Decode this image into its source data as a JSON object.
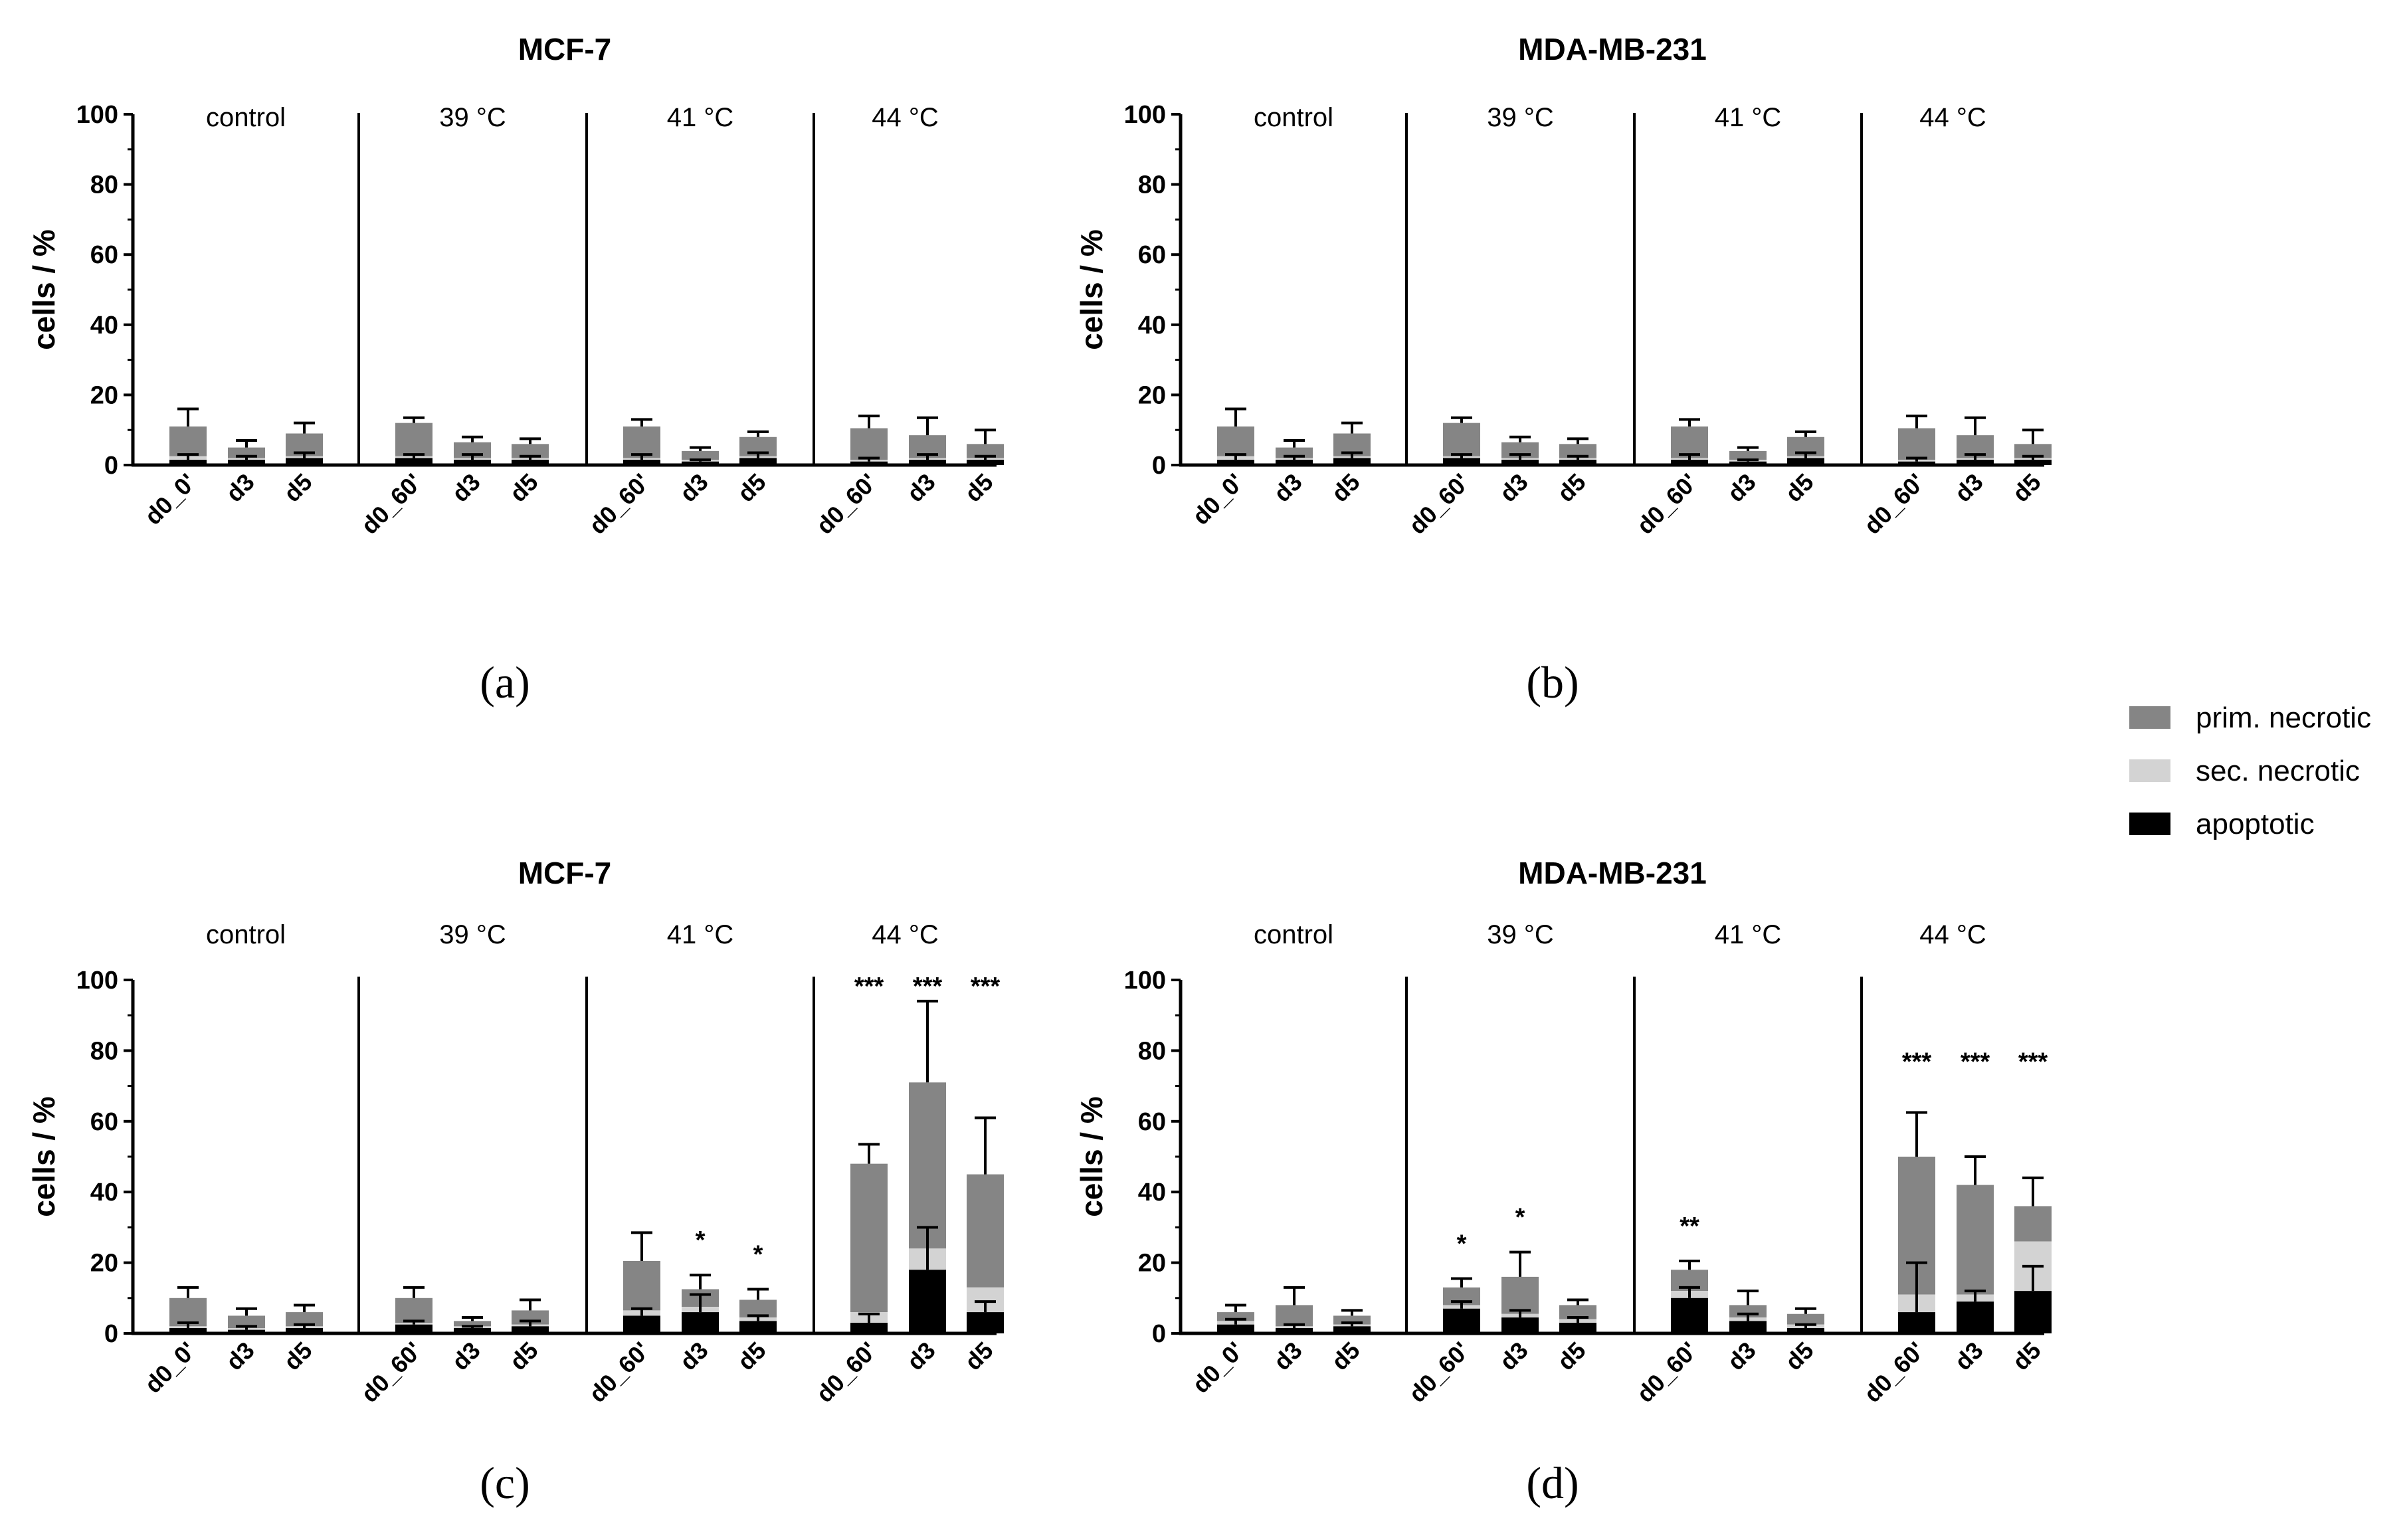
{
  "colors": {
    "prim": "#858585",
    "sec": "#d3d3d3",
    "apop": "#000000",
    "axis": "#000000"
  },
  "legend": [
    {
      "key": "prim",
      "label": "prim. necrotic"
    },
    {
      "key": "sec",
      "label": "sec. necrotic"
    },
    {
      "key": "apop",
      "label": "apoptotic"
    }
  ],
  "chart_data": [
    {
      "type": "bar",
      "panel_label": "(a)",
      "title": "MCF-7",
      "ylabel": "cells / %",
      "ylim": [
        0,
        100
      ],
      "yticks": [
        "0",
        "20",
        "40",
        "60",
        "80",
        "100"
      ],
      "groups": [
        {
          "label": "control",
          "categories": [
            "d0_0'",
            "d3",
            "d5"
          ],
          "apoptotic": [
            1.5,
            1.5,
            2
          ],
          "sec_necrotic": [
            1,
            0.5,
            0.5
          ],
          "prim_necrotic": [
            8.5,
            3,
            6.5
          ],
          "err_apoptotic": [
            1.5,
            1,
            1.5
          ],
          "err_total": [
            5,
            2,
            3
          ],
          "stars": [
            "",
            "",
            ""
          ]
        },
        {
          "label": "39 °C",
          "categories": [
            "d0_60'",
            "d3",
            "d5"
          ],
          "apoptotic": [
            2,
            1.5,
            1.5
          ],
          "sec_necrotic": [
            0.5,
            0.5,
            0.5
          ],
          "prim_necrotic": [
            9.5,
            4.5,
            4
          ],
          "err_apoptotic": [
            1,
            1.5,
            1
          ],
          "err_total": [
            1.5,
            1.5,
            1.5
          ],
          "stars": [
            "",
            "",
            ""
          ]
        },
        {
          "label": "41 °C",
          "categories": [
            "d0_60'",
            "d3",
            "d5"
          ],
          "apoptotic": [
            1.5,
            1,
            2
          ],
          "sec_necrotic": [
            0.5,
            0.5,
            0.5
          ],
          "prim_necrotic": [
            9,
            2.5,
            5.5
          ],
          "err_apoptotic": [
            1.5,
            0.5,
            1.5
          ],
          "err_total": [
            2,
            1,
            1.5
          ],
          "stars": [
            "",
            "",
            ""
          ]
        },
        {
          "label": "44 °C",
          "categories": [
            "d0_60'",
            "d3",
            "d5"
          ],
          "apoptotic": [
            1,
            1.5,
            1.5
          ],
          "sec_necrotic": [
            0.5,
            0.5,
            0.5
          ],
          "prim_necrotic": [
            9,
            6.5,
            4
          ],
          "err_apoptotic": [
            1,
            1.5,
            1
          ],
          "err_total": [
            3.5,
            5,
            4
          ],
          "stars": [
            "",
            "",
            ""
          ]
        }
      ]
    },
    {
      "type": "bar",
      "panel_label": "(b)",
      "title": "MDA-MB-231",
      "ylabel": "cells / %",
      "ylim": [
        0,
        100
      ],
      "yticks": [
        "0",
        "20",
        "40",
        "60",
        "80",
        "100"
      ],
      "groups": [
        {
          "label": "control",
          "categories": [
            "d0_0'",
            "d3",
            "d5"
          ],
          "apoptotic": [
            1.5,
            1.5,
            2
          ],
          "sec_necrotic": [
            1,
            0.5,
            0.5
          ],
          "prim_necrotic": [
            8.5,
            3,
            6.5
          ],
          "err_apoptotic": [
            1.5,
            1,
            1.5
          ],
          "err_total": [
            5,
            2,
            3
          ],
          "stars": [
            "",
            "",
            ""
          ]
        },
        {
          "label": "39 °C",
          "categories": [
            "d0_60'",
            "d3",
            "d5"
          ],
          "apoptotic": [
            2,
            1.5,
            1.5
          ],
          "sec_necrotic": [
            0.5,
            0.5,
            0.5
          ],
          "prim_necrotic": [
            9.5,
            4.5,
            4
          ],
          "err_apoptotic": [
            1,
            1.5,
            1
          ],
          "err_total": [
            1.5,
            1.5,
            1.5
          ],
          "stars": [
            "",
            "",
            ""
          ]
        },
        {
          "label": "41 °C",
          "categories": [
            "d0_60'",
            "d3",
            "d5"
          ],
          "apoptotic": [
            1.5,
            1,
            2
          ],
          "sec_necrotic": [
            0.5,
            0.5,
            0.5
          ],
          "prim_necrotic": [
            9,
            2.5,
            5.5
          ],
          "err_apoptotic": [
            1.5,
            0.5,
            1.5
          ],
          "err_total": [
            2,
            1,
            1.5
          ],
          "stars": [
            "",
            "",
            ""
          ]
        },
        {
          "label": "44 °C",
          "categories": [
            "d0_60'",
            "d3",
            "d5"
          ],
          "apoptotic": [
            1,
            1.5,
            1.5
          ],
          "sec_necrotic": [
            0.5,
            0.5,
            0.5
          ],
          "prim_necrotic": [
            9,
            6.5,
            4
          ],
          "err_apoptotic": [
            1,
            1.5,
            1
          ],
          "err_total": [
            3.5,
            5,
            4
          ],
          "stars": [
            "",
            "",
            ""
          ]
        }
      ]
    },
    {
      "type": "bar",
      "panel_label": "(c)",
      "title": "MCF-7",
      "ylabel": "cells / %",
      "ylim": [
        0,
        100
      ],
      "yticks": [
        "0",
        "20",
        "40",
        "60",
        "80",
        "100"
      ],
      "groups": [
        {
          "label": "control",
          "categories": [
            "d0_0'",
            "d3",
            "d5"
          ],
          "apoptotic": [
            1.5,
            1,
            1.5
          ],
          "sec_necrotic": [
            0.5,
            0.5,
            0.5
          ],
          "prim_necrotic": [
            8,
            3.5,
            4
          ],
          "err_apoptotic": [
            1.5,
            1,
            1
          ],
          "err_total": [
            3,
            2,
            2
          ],
          "stars": [
            "",
            "",
            ""
          ]
        },
        {
          "label": "39 °C",
          "categories": [
            "d0_60'",
            "d3",
            "d5"
          ],
          "apoptotic": [
            2.5,
            1.5,
            2
          ],
          "sec_necrotic": [
            0.5,
            0.5,
            0.5
          ],
          "prim_necrotic": [
            7,
            1.5,
            4
          ],
          "err_apoptotic": [
            1,
            0.5,
            1.5
          ],
          "err_total": [
            3,
            1,
            3
          ],
          "stars": [
            "",
            "",
            ""
          ]
        },
        {
          "label": "41 °C",
          "categories": [
            "d0_60'",
            "d3",
            "d5"
          ],
          "apoptotic": [
            5,
            6,
            3.5
          ],
          "sec_necrotic": [
            1.5,
            1.5,
            1
          ],
          "prim_necrotic": [
            14,
            5,
            5
          ],
          "err_apoptotic": [
            2,
            5,
            1.5
          ],
          "err_total": [
            8,
            4,
            3
          ],
          "stars": [
            "",
            "*",
            "*"
          ]
        },
        {
          "label": "44 °C",
          "categories": [
            "d0_60'",
            "d3",
            "d5"
          ],
          "apoptotic": [
            3,
            18,
            6
          ],
          "sec_necrotic": [
            3,
            6,
            7
          ],
          "prim_necrotic": [
            42,
            47,
            32
          ],
          "err_apoptotic": [
            2.5,
            12,
            3
          ],
          "err_total": [
            5.5,
            23,
            16
          ],
          "stars": [
            "***",
            "***",
            "***"
          ]
        }
      ]
    },
    {
      "type": "bar",
      "panel_label": "(d)",
      "title": "MDA-MB-231",
      "ylabel": "cells / %",
      "ylim": [
        0,
        100
      ],
      "yticks": [
        "0",
        "20",
        "40",
        "60",
        "80",
        "100"
      ],
      "groups": [
        {
          "label": "control",
          "categories": [
            "d0_0'",
            "d3",
            "d5"
          ],
          "apoptotic": [
            2.5,
            1.5,
            2
          ],
          "sec_necrotic": [
            1,
            0.5,
            0.5
          ],
          "prim_necrotic": [
            2.5,
            6,
            2.5
          ],
          "err_apoptotic": [
            1.5,
            1,
            1
          ],
          "err_total": [
            2,
            5,
            1.5
          ],
          "stars": [
            "",
            "",
            ""
          ]
        },
        {
          "label": "39 °C",
          "categories": [
            "d0_60'",
            "d3",
            "d5"
          ],
          "apoptotic": [
            7,
            4.5,
            3
          ],
          "sec_necrotic": [
            1,
            1,
            1
          ],
          "prim_necrotic": [
            5,
            10.5,
            4
          ],
          "err_apoptotic": [
            2,
            2,
            1.5
          ],
          "err_total": [
            2.5,
            7,
            1.5
          ],
          "stars": [
            "*",
            "*",
            ""
          ]
        },
        {
          "label": "41 °C",
          "categories": [
            "d0_60'",
            "d3",
            "d5"
          ],
          "apoptotic": [
            10,
            3.5,
            1.5
          ],
          "sec_necrotic": [
            2,
            1,
            1
          ],
          "prim_necrotic": [
            6,
            3.5,
            3
          ],
          "err_apoptotic": [
            3,
            2,
            1
          ],
          "err_total": [
            2.5,
            4,
            1.5
          ],
          "stars": [
            "**",
            "",
            ""
          ]
        },
        {
          "label": "44 °C",
          "categories": [
            "d0_60'",
            "d3",
            "d5"
          ],
          "apoptotic": [
            6,
            9,
            12
          ],
          "sec_necrotic": [
            5,
            2,
            14
          ],
          "prim_necrotic": [
            39,
            31,
            10
          ],
          "err_apoptotic": [
            14,
            3,
            7
          ],
          "err_total": [
            12.5,
            8,
            8
          ],
          "stars": [
            "***",
            "***",
            "***"
          ]
        }
      ]
    }
  ]
}
